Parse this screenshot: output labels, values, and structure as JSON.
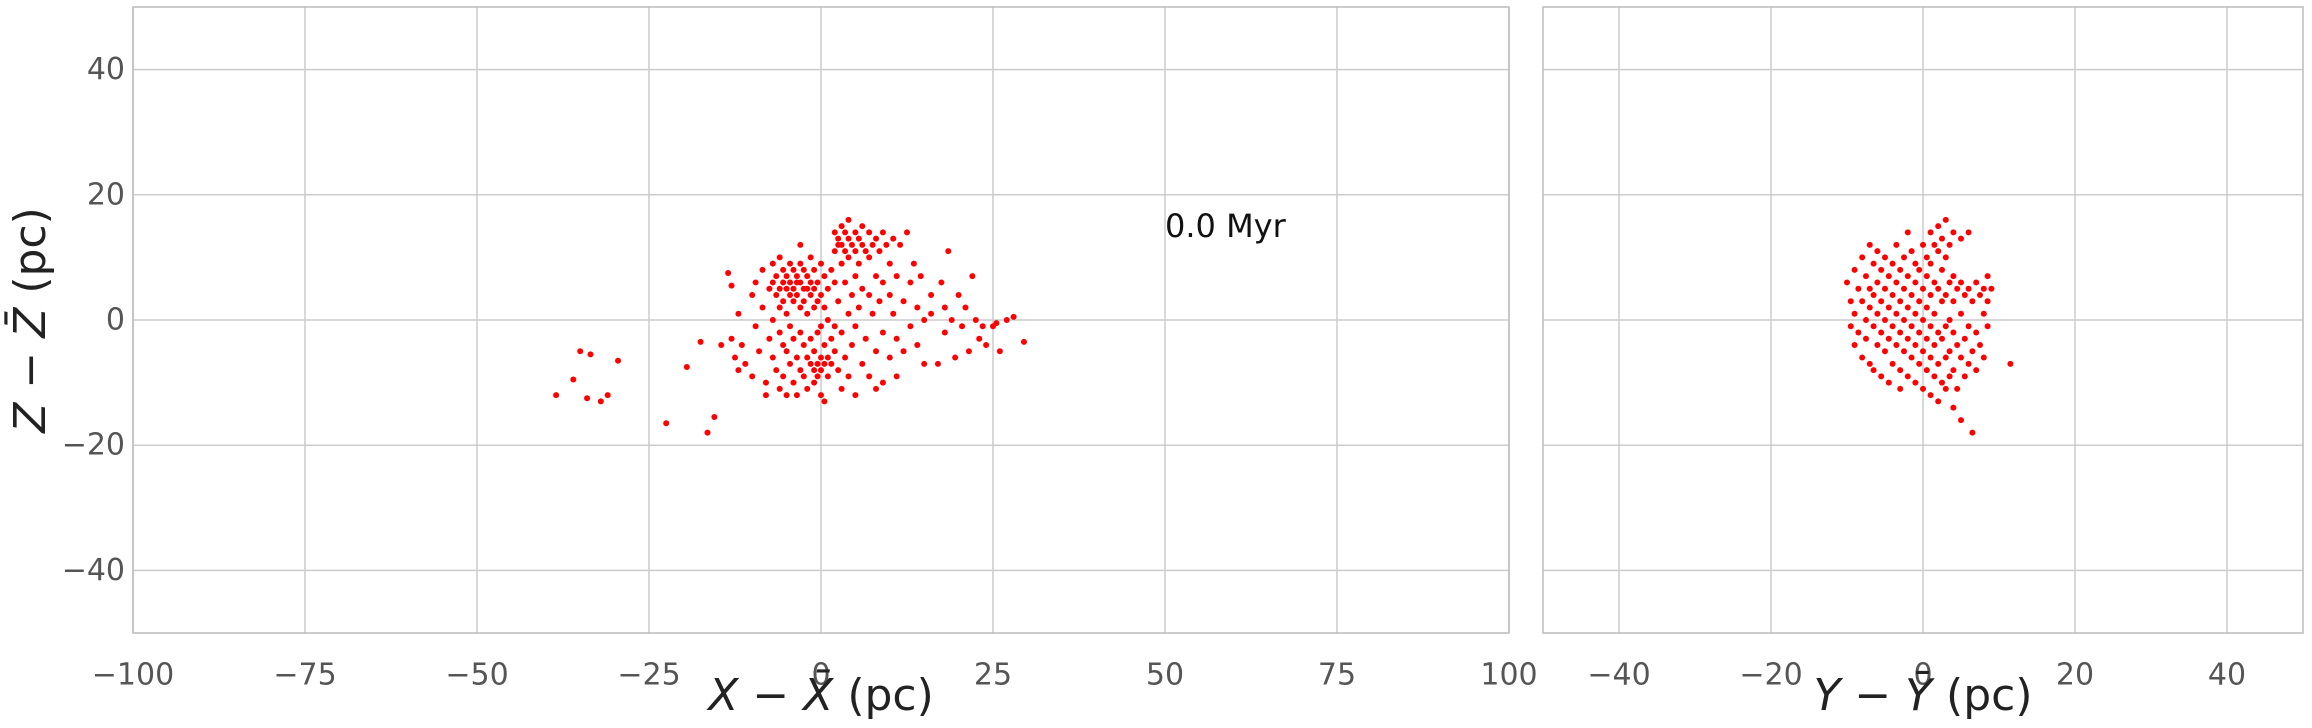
{
  "chart_data": [
    {
      "type": "scatter",
      "id": "xz",
      "xlabel_main": "X − X̄",
      "xlabel_unit": " (pc)",
      "ylabel_main": "Z − Z̄",
      "ylabel_unit": " (pc)",
      "xlim": [
        -100,
        100
      ],
      "ylim": [
        -50,
        50
      ],
      "xticks": [
        -100,
        -75,
        -50,
        -25,
        0,
        25,
        50,
        75,
        100
      ],
      "xtick_labels": [
        "−100",
        "−75",
        "−50",
        "−25",
        "0",
        "25",
        "50",
        "75",
        "100"
      ],
      "yticks": [
        -40,
        -20,
        0,
        20,
        40
      ],
      "ytick_labels": [
        "−40",
        "−20",
        "0",
        "20",
        "40"
      ],
      "grid": true,
      "marker_color": "#ff0000",
      "annotation": {
        "text": "0.0 Myr",
        "x": 50,
        "y": 15
      },
      "points": [
        [
          -38.5,
          -12
        ],
        [
          -36,
          -9.5
        ],
        [
          -35,
          -5
        ],
        [
          -34,
          -12.5
        ],
        [
          -33.5,
          -5.5
        ],
        [
          -32,
          -13
        ],
        [
          -31,
          -12
        ],
        [
          -29.5,
          -6.5
        ],
        [
          -22.5,
          -16.5
        ],
        [
          -19.5,
          -7.5
        ],
        [
          -17.5,
          -3.5
        ],
        [
          -16.5,
          -18
        ],
        [
          -15.5,
          -15.5
        ],
        [
          -14.5,
          -4
        ],
        [
          -13.5,
          7.5
        ],
        [
          -13,
          5.5
        ],
        [
          -13,
          -3
        ],
        [
          -12.5,
          -6
        ],
        [
          -12,
          1
        ],
        [
          -12,
          -8
        ],
        [
          -11.5,
          -4
        ],
        [
          -11,
          -7
        ],
        [
          -10,
          -9
        ],
        [
          -10,
          4
        ],
        [
          -9.5,
          6
        ],
        [
          -9.5,
          -1
        ],
        [
          -9,
          -5
        ],
        [
          -8.5,
          8
        ],
        [
          -8.5,
          2
        ],
        [
          -8,
          -10
        ],
        [
          -8,
          -12
        ],
        [
          -7.5,
          5
        ],
        [
          -7.5,
          -3
        ],
        [
          -7,
          9
        ],
        [
          -7,
          6
        ],
        [
          -7,
          0
        ],
        [
          -7,
          -6
        ],
        [
          -6.5,
          7
        ],
        [
          -6.5,
          4
        ],
        [
          -6.5,
          -8
        ],
        [
          -6,
          10
        ],
        [
          -6,
          5
        ],
        [
          -6,
          2
        ],
        [
          -6,
          -2
        ],
        [
          -6,
          -11
        ],
        [
          -5.5,
          8
        ],
        [
          -5.5,
          6
        ],
        [
          -5.5,
          3
        ],
        [
          -5.5,
          -4
        ],
        [
          -5.5,
          -9
        ],
        [
          -5,
          7
        ],
        [
          -5,
          5
        ],
        [
          -5,
          1
        ],
        [
          -5,
          -5
        ],
        [
          -5,
          -12
        ],
        [
          -4.5,
          9
        ],
        [
          -4.5,
          6
        ],
        [
          -4.5,
          4
        ],
        [
          -4.5,
          -1
        ],
        [
          -4.5,
          -7
        ],
        [
          -4,
          8
        ],
        [
          -4,
          5
        ],
        [
          -4,
          3
        ],
        [
          -4,
          -3
        ],
        [
          -4,
          -10
        ],
        [
          -3.5,
          7
        ],
        [
          -3.5,
          6
        ],
        [
          -3.5,
          4
        ],
        [
          -3.5,
          -6
        ],
        [
          -3.5,
          -12
        ],
        [
          -3,
          12
        ],
        [
          -3,
          9
        ],
        [
          -3,
          6
        ],
        [
          -3,
          2
        ],
        [
          -3,
          -2
        ],
        [
          -3,
          -8
        ],
        [
          -2.5,
          8
        ],
        [
          -2.5,
          5
        ],
        [
          -2.5,
          3
        ],
        [
          -2.5,
          -4
        ],
        [
          -2.5,
          -9
        ],
        [
          -2,
          7
        ],
        [
          -2,
          5
        ],
        [
          -2,
          1
        ],
        [
          -2,
          -6
        ],
        [
          -2,
          -11
        ],
        [
          -1.5,
          10
        ],
        [
          -1.5,
          6
        ],
        [
          -1.5,
          4
        ],
        [
          -1.5,
          -3
        ],
        [
          -1.5,
          -7
        ],
        [
          -1,
          8
        ],
        [
          -1,
          5
        ],
        [
          -1,
          2
        ],
        [
          -1,
          -5
        ],
        [
          -1,
          -8
        ],
        [
          -1,
          -10
        ],
        [
          -0.5,
          6
        ],
        [
          -0.5,
          3
        ],
        [
          -0.5,
          -2
        ],
        [
          -0.5,
          -7
        ],
        [
          -0.5,
          -9
        ],
        [
          0,
          9
        ],
        [
          0,
          4
        ],
        [
          0,
          -1
        ],
        [
          0,
          -6
        ],
        [
          0,
          -8
        ],
        [
          0,
          -12
        ],
        [
          0.5,
          7
        ],
        [
          0.5,
          2
        ],
        [
          0.5,
          -4
        ],
        [
          0.5,
          -7
        ],
        [
          0.5,
          -13
        ],
        [
          1,
          5
        ],
        [
          1,
          0
        ],
        [
          1,
          -6
        ],
        [
          1,
          -9
        ],
        [
          1.5,
          8
        ],
        [
          1.5,
          -3
        ],
        [
          1.5,
          -7
        ],
        [
          2,
          14
        ],
        [
          2,
          11
        ],
        [
          2,
          6
        ],
        [
          2,
          -1
        ],
        [
          2,
          -5
        ],
        [
          2.5,
          13
        ],
        [
          2.5,
          12
        ],
        [
          2.5,
          3
        ],
        [
          2.5,
          -8
        ],
        [
          3,
          15
        ],
        [
          3,
          12
        ],
        [
          3,
          9
        ],
        [
          3,
          -2
        ],
        [
          3,
          -11
        ],
        [
          3.5,
          14
        ],
        [
          3.5,
          11
        ],
        [
          3.5,
          6
        ],
        [
          3.5,
          -6
        ],
        [
          4,
          16
        ],
        [
          4,
          13
        ],
        [
          4,
          10
        ],
        [
          4,
          1
        ],
        [
          4,
          -9
        ],
        [
          4.5,
          12
        ],
        [
          4.5,
          4
        ],
        [
          4.5,
          -4
        ],
        [
          5,
          14
        ],
        [
          5,
          11
        ],
        [
          5,
          7
        ],
        [
          5,
          -1
        ],
        [
          5,
          -12
        ],
        [
          5.5,
          13
        ],
        [
          5.5,
          9
        ],
        [
          5.5,
          2
        ],
        [
          6,
          15
        ],
        [
          6,
          12
        ],
        [
          6,
          5
        ],
        [
          6,
          -7
        ],
        [
          6.5,
          11
        ],
        [
          6.5,
          -3
        ],
        [
          7,
          14
        ],
        [
          7,
          10
        ],
        [
          7,
          4
        ],
        [
          7,
          -9
        ],
        [
          7.5,
          12
        ],
        [
          7.5,
          1
        ],
        [
          8,
          13
        ],
        [
          8,
          7
        ],
        [
          8,
          -5
        ],
        [
          8,
          -11
        ],
        [
          8.5,
          11
        ],
        [
          8.5,
          3
        ],
        [
          9,
          14
        ],
        [
          9,
          6
        ],
        [
          9,
          -2
        ],
        [
          9,
          -10
        ],
        [
          9.5,
          12
        ],
        [
          10,
          9
        ],
        [
          10,
          4
        ],
        [
          10,
          -6
        ],
        [
          10.5,
          13
        ],
        [
          10.5,
          1
        ],
        [
          11,
          7
        ],
        [
          11,
          -3
        ],
        [
          11,
          -9
        ],
        [
          11.5,
          12
        ],
        [
          12,
          3
        ],
        [
          12,
          -5
        ],
        [
          12.5,
          14
        ],
        [
          13,
          6
        ],
        [
          13,
          -1
        ],
        [
          13.5,
          9
        ],
        [
          14,
          2
        ],
        [
          14,
          -4
        ],
        [
          14.5,
          7
        ],
        [
          15,
          0
        ],
        [
          15,
          -7
        ],
        [
          16,
          4
        ],
        [
          16,
          1
        ],
        [
          17,
          -7
        ],
        [
          17.5,
          6
        ],
        [
          18,
          2
        ],
        [
          18,
          -2
        ],
        [
          18.5,
          11
        ],
        [
          19,
          0
        ],
        [
          19.5,
          -6
        ],
        [
          20,
          4
        ],
        [
          20.5,
          -1
        ],
        [
          21,
          2
        ],
        [
          21.5,
          -5
        ],
        [
          22,
          7
        ],
        [
          22.5,
          0
        ],
        [
          23,
          -3
        ],
        [
          23.5,
          -1
        ],
        [
          24,
          -4
        ],
        [
          25,
          -1
        ],
        [
          25.5,
          -0.5
        ],
        [
          26,
          -5
        ],
        [
          27,
          0
        ],
        [
          28,
          0.5
        ],
        [
          29.5,
          -3.5
        ]
      ]
    },
    {
      "type": "scatter",
      "id": "yz",
      "xlabel_main": "Y − Ȳ",
      "xlabel_unit": " (pc)",
      "xlim": [
        -50,
        50
      ],
      "ylim": [
        -50,
        50
      ],
      "xticks": [
        -40,
        -20,
        0,
        20,
        40
      ],
      "xtick_labels": [
        "−40",
        "−20",
        "0",
        "20",
        "40"
      ],
      "yticks": [
        -40,
        -20,
        0,
        20,
        40
      ],
      "grid": true,
      "marker_color": "#ff0000",
      "points": [
        [
          -10,
          6
        ],
        [
          -9.5,
          3
        ],
        [
          -9.5,
          -1
        ],
        [
          -9,
          8
        ],
        [
          -9,
          1
        ],
        [
          -9,
          -4
        ],
        [
          -8.5,
          5
        ],
        [
          -8.5,
          -2
        ],
        [
          -8,
          10
        ],
        [
          -8,
          3
        ],
        [
          -8,
          -6
        ],
        [
          -7.5,
          7
        ],
        [
          -7.5,
          0
        ],
        [
          -7.5,
          -3
        ],
        [
          -7,
          12
        ],
        [
          -7,
          5
        ],
        [
          -7,
          2
        ],
        [
          -7,
          -7
        ],
        [
          -6.5,
          9
        ],
        [
          -6.5,
          4
        ],
        [
          -6.5,
          -1
        ],
        [
          -6.5,
          -8
        ],
        [
          -6,
          11
        ],
        [
          -6,
          6
        ],
        [
          -6,
          1
        ],
        [
          -6,
          -4
        ],
        [
          -5.5,
          8
        ],
        [
          -5.5,
          3
        ],
        [
          -5.5,
          -2
        ],
        [
          -5.5,
          -9
        ],
        [
          -5,
          10
        ],
        [
          -5,
          5
        ],
        [
          -5,
          0
        ],
        [
          -5,
          -5
        ],
        [
          -4.5,
          7
        ],
        [
          -4.5,
          2
        ],
        [
          -4.5,
          -3
        ],
        [
          -4.5,
          -10
        ],
        [
          -4,
          9
        ],
        [
          -4,
          4
        ],
        [
          -4,
          -1
        ],
        [
          -4,
          -7
        ],
        [
          -3.5,
          12
        ],
        [
          -3.5,
          6
        ],
        [
          -3.5,
          1
        ],
        [
          -3.5,
          -4
        ],
        [
          -3,
          8
        ],
        [
          -3,
          3
        ],
        [
          -3,
          -2
        ],
        [
          -3,
          -8
        ],
        [
          -3,
          -11
        ],
        [
          -2.5,
          10
        ],
        [
          -2.5,
          5
        ],
        [
          -2.5,
          0
        ],
        [
          -2.5,
          -5
        ],
        [
          -2,
          14
        ],
        [
          -2,
          7
        ],
        [
          -2,
          2
        ],
        [
          -2,
          -3
        ],
        [
          -2,
          -9
        ],
        [
          -1.5,
          11
        ],
        [
          -1.5,
          4
        ],
        [
          -1.5,
          -1
        ],
        [
          -1.5,
          -6
        ],
        [
          -1,
          9
        ],
        [
          -1,
          6
        ],
        [
          -1,
          1
        ],
        [
          -1,
          -4
        ],
        [
          -1,
          -10
        ],
        [
          -0.5,
          8
        ],
        [
          -0.5,
          3
        ],
        [
          -0.5,
          -2
        ],
        [
          -0.5,
          -7
        ],
        [
          0,
          12
        ],
        [
          0,
          5
        ],
        [
          0,
          0
        ],
        [
          0,
          -5
        ],
        [
          0,
          -11
        ],
        [
          0.5,
          10
        ],
        [
          0.5,
          7
        ],
        [
          0.5,
          2
        ],
        [
          0.5,
          -3
        ],
        [
          0.5,
          -8
        ],
        [
          1,
          14
        ],
        [
          1,
          9
        ],
        [
          1,
          4
        ],
        [
          1,
          -1
        ],
        [
          1,
          -6
        ],
        [
          1,
          -12
        ],
        [
          1.5,
          12
        ],
        [
          1.5,
          6
        ],
        [
          1.5,
          1
        ],
        [
          1.5,
          -4
        ],
        [
          1.5,
          -9
        ],
        [
          2,
          15
        ],
        [
          2,
          11
        ],
        [
          2,
          5
        ],
        [
          2,
          -2
        ],
        [
          2,
          -7
        ],
        [
          2,
          -13
        ],
        [
          2.5,
          13
        ],
        [
          2.5,
          8
        ],
        [
          2.5,
          3
        ],
        [
          2.5,
          -3
        ],
        [
          2.5,
          -10
        ],
        [
          3,
          16
        ],
        [
          3,
          10
        ],
        [
          3,
          4
        ],
        [
          3,
          -1
        ],
        [
          3,
          -6
        ],
        [
          3,
          -11
        ],
        [
          3.5,
          12
        ],
        [
          3.5,
          6
        ],
        [
          3.5,
          0
        ],
        [
          3.5,
          -5
        ],
        [
          3.5,
          -9
        ],
        [
          4,
          14
        ],
        [
          4,
          7
        ],
        [
          4,
          3
        ],
        [
          4,
          -2
        ],
        [
          4,
          -8
        ],
        [
          4,
          -14
        ],
        [
          4.5,
          5
        ],
        [
          4.5,
          -4
        ],
        [
          4.5,
          -11
        ],
        [
          5,
          13
        ],
        [
          5,
          6
        ],
        [
          5,
          1
        ],
        [
          5,
          -6
        ],
        [
          5,
          -16
        ],
        [
          5.5,
          4
        ],
        [
          5.5,
          -3
        ],
        [
          5.5,
          -9
        ],
        [
          6,
          14
        ],
        [
          6,
          5
        ],
        [
          6,
          -1
        ],
        [
          6,
          -7
        ],
        [
          6.5,
          3
        ],
        [
          6.5,
          -5
        ],
        [
          6.5,
          -18
        ],
        [
          7,
          6
        ],
        [
          7,
          -2
        ],
        [
          7,
          -8
        ],
        [
          7.5,
          4
        ],
        [
          7.5,
          -4
        ],
        [
          8,
          5
        ],
        [
          8,
          1
        ],
        [
          8,
          -6
        ],
        [
          8.5,
          7
        ],
        [
          8.5,
          3
        ],
        [
          8.5,
          -1
        ],
        [
          9,
          5
        ],
        [
          11.5,
          -7
        ]
      ]
    }
  ]
}
